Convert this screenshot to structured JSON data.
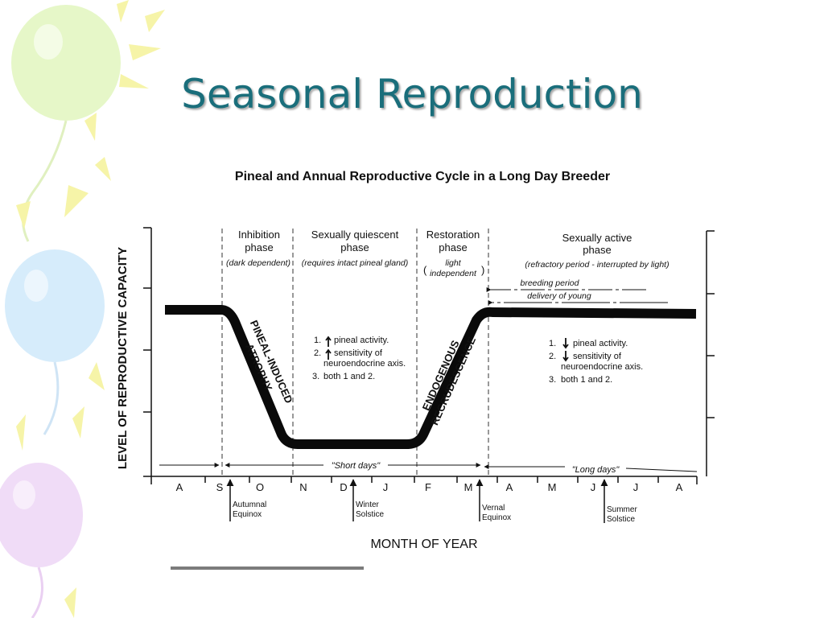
{
  "slide": {
    "title": "Seasonal Reproduction"
  },
  "colors": {
    "title": "#1a6e7b",
    "ink": "#111111",
    "balloon_green": "#e6f7c8",
    "balloon_blue": "#d6ecfb",
    "balloon_purple": "#f0dcf7",
    "ray_yellow": "#f6f4a8"
  },
  "figure": {
    "title": "Pineal and Annual Reproductive Cycle in a Long Day Breeder",
    "ylabel": "LEVEL OF REPRODUCTIVE CAPACITY",
    "xlabel": "MONTH OF YEAR",
    "months": [
      "A",
      "S",
      "O",
      "N",
      "D",
      "J",
      "F",
      "M",
      "A",
      "M",
      "J",
      "J",
      "A"
    ],
    "phases": [
      {
        "title1": "Inhibition",
        "title2": "phase",
        "note1": "(dark dependent)",
        "note2": ""
      },
      {
        "title1": "Sexually quiescent",
        "title2": "phase",
        "note1": "(requires intact pineal gland)",
        "note2": ""
      },
      {
        "title1": "Restoration",
        "title2": "phase",
        "note1": "light",
        "note2": "independent"
      },
      {
        "title1": "Sexually active",
        "title2": "phase",
        "note1": "(refractory period - interrupted by light)",
        "note2": ""
      }
    ],
    "paren_open": "(",
    "paren_close": ")",
    "curve_labels": {
      "atrophy1": "PINEAL-INDUCED",
      "atrophy2": "ATROPHY",
      "recrud1": "ENDOGENOUS",
      "recrud2": "RECRUDESCENCE"
    },
    "notes_left": [
      "1.",
      "pineal activity.",
      "2.",
      "sensitivity of",
      "neuroendocrine axis.",
      "3.",
      "both 1 and 2."
    ],
    "notes_right": [
      "1.",
      "pineal activity.",
      "2.",
      "sensitivity of",
      "neuroendocrine axis.",
      "3.",
      "both 1 and 2."
    ],
    "breeding_period": "breeding period",
    "delivery_of_young": "delivery of young",
    "short_days": "\"Short days\"",
    "long_days": "\"Long days\"",
    "events": [
      {
        "line1": "Autumnal",
        "line2": "Equinox"
      },
      {
        "line1": "Winter",
        "line2": "Solstice"
      },
      {
        "line1": "Vernal",
        "line2": "Equinox"
      },
      {
        "line1": "Summer",
        "line2": "Solstice"
      }
    ]
  }
}
